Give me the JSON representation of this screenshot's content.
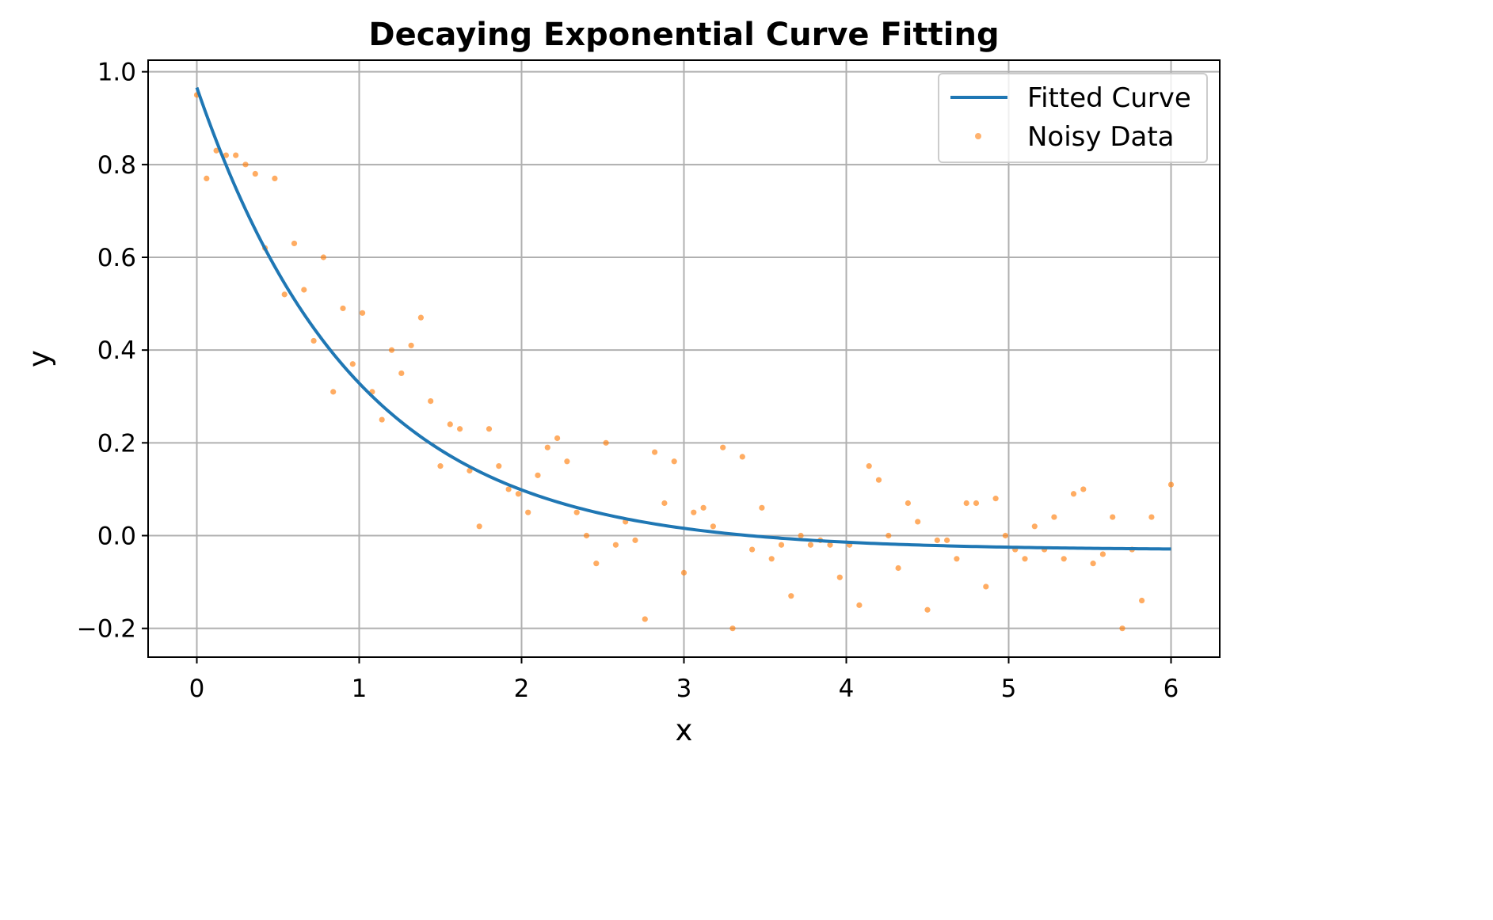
{
  "chart_data": {
    "type": "line",
    "title": "Decaying Exponential Curve Fitting",
    "xlabel": "x",
    "ylabel": "y",
    "xlim": [
      -0.3,
      6.3
    ],
    "ylim": [
      -0.262,
      1.025
    ],
    "xticks": [
      0,
      1,
      2,
      3,
      4,
      5,
      6
    ],
    "xtick_labels": [
      "0",
      "1",
      "2",
      "3",
      "4",
      "5",
      "6"
    ],
    "yticks": [
      -0.2,
      0.0,
      0.2,
      0.4,
      0.6,
      0.8,
      1.0
    ],
    "ytick_labels": [
      "−0.2",
      "0.0",
      "0.2",
      "0.4",
      "0.6",
      "0.8",
      "1.0"
    ],
    "grid": true,
    "legend_position": "top-right",
    "series": [
      {
        "name": "Fitted Curve",
        "kind": "line",
        "color": "#1f77b4",
        "model": {
          "form": "a*exp(-b*x)+c",
          "a": 0.997,
          "b": 1.02,
          "c": -0.031
        }
      },
      {
        "name": "Noisy Data",
        "kind": "scatter",
        "color": "#ff7f0e",
        "points": [
          [
            0.0,
            0.95
          ],
          [
            0.06,
            0.77
          ],
          [
            0.12,
            0.83
          ],
          [
            0.18,
            0.82
          ],
          [
            0.24,
            0.82
          ],
          [
            0.3,
            0.8
          ],
          [
            0.36,
            0.78
          ],
          [
            0.42,
            0.62
          ],
          [
            0.48,
            0.77
          ],
          [
            0.54,
            0.52
          ],
          [
            0.6,
            0.63
          ],
          [
            0.66,
            0.53
          ],
          [
            0.72,
            0.42
          ],
          [
            0.78,
            0.6
          ],
          [
            0.84,
            0.31
          ],
          [
            0.9,
            0.49
          ],
          [
            0.96,
            0.37
          ],
          [
            1.02,
            0.48
          ],
          [
            1.08,
            0.31
          ],
          [
            1.14,
            0.25
          ],
          [
            1.2,
            0.4
          ],
          [
            1.26,
            0.35
          ],
          [
            1.32,
            0.41
          ],
          [
            1.38,
            0.47
          ],
          [
            1.44,
            0.29
          ],
          [
            1.5,
            0.15
          ],
          [
            1.56,
            0.24
          ],
          [
            1.62,
            0.23
          ],
          [
            1.68,
            0.14
          ],
          [
            1.74,
            0.02
          ],
          [
            1.8,
            0.23
          ],
          [
            1.86,
            0.15
          ],
          [
            1.92,
            0.1
          ],
          [
            1.98,
            0.09
          ],
          [
            2.04,
            0.05
          ],
          [
            2.1,
            0.13
          ],
          [
            2.16,
            0.19
          ],
          [
            2.22,
            0.21
          ],
          [
            2.28,
            0.16
          ],
          [
            2.34,
            0.05
          ],
          [
            2.4,
            0.0
          ],
          [
            2.46,
            -0.06
          ],
          [
            2.52,
            0.2
          ],
          [
            2.58,
            -0.02
          ],
          [
            2.64,
            0.03
          ],
          [
            2.7,
            -0.01
          ],
          [
            2.76,
            -0.18
          ],
          [
            2.82,
            0.18
          ],
          [
            2.88,
            0.07
          ],
          [
            2.94,
            0.16
          ],
          [
            3.0,
            -0.08
          ],
          [
            3.06,
            0.05
          ],
          [
            3.12,
            0.06
          ],
          [
            3.18,
            0.02
          ],
          [
            3.24,
            0.19
          ],
          [
            3.3,
            -0.2
          ],
          [
            3.36,
            0.17
          ],
          [
            3.42,
            -0.03
          ],
          [
            3.48,
            0.06
          ],
          [
            3.54,
            -0.05
          ],
          [
            3.6,
            -0.02
          ],
          [
            3.66,
            -0.13
          ],
          [
            3.72,
            0.0
          ],
          [
            3.78,
            -0.02
          ],
          [
            3.84,
            -0.01
          ],
          [
            3.9,
            -0.02
          ],
          [
            3.96,
            -0.09
          ],
          [
            4.02,
            -0.02
          ],
          [
            4.08,
            -0.15
          ],
          [
            4.14,
            0.15
          ],
          [
            4.2,
            0.12
          ],
          [
            4.26,
            0.0
          ],
          [
            4.32,
            -0.07
          ],
          [
            4.38,
            0.07
          ],
          [
            4.44,
            0.03
          ],
          [
            4.5,
            -0.16
          ],
          [
            4.56,
            -0.01
          ],
          [
            4.62,
            -0.01
          ],
          [
            4.68,
            -0.05
          ],
          [
            4.74,
            0.07
          ],
          [
            4.8,
            0.07
          ],
          [
            4.86,
            -0.11
          ],
          [
            4.92,
            0.08
          ],
          [
            4.98,
            0.0
          ],
          [
            5.04,
            -0.03
          ],
          [
            5.1,
            -0.05
          ],
          [
            5.16,
            0.02
          ],
          [
            5.22,
            -0.03
          ],
          [
            5.28,
            0.04
          ],
          [
            5.34,
            -0.05
          ],
          [
            5.4,
            0.09
          ],
          [
            5.46,
            0.1
          ],
          [
            5.52,
            -0.06
          ],
          [
            5.58,
            -0.04
          ],
          [
            5.64,
            0.04
          ],
          [
            5.7,
            -0.2
          ],
          [
            5.76,
            -0.03
          ],
          [
            5.82,
            -0.14
          ],
          [
            5.88,
            0.04
          ],
          [
            6.0,
            0.11
          ]
        ]
      }
    ]
  }
}
